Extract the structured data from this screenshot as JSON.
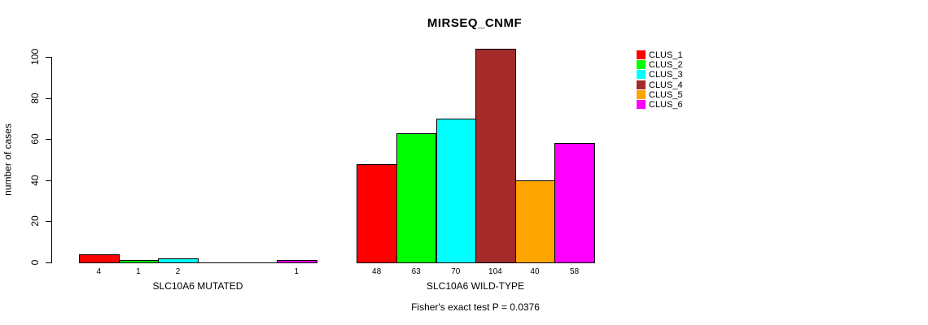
{
  "chart_data": {
    "type": "bar",
    "title": "MIRSEQ_CNMF",
    "ylabel": "number of cases",
    "ylim": [
      0,
      100
    ],
    "yticks": [
      0,
      20,
      40,
      60,
      80,
      100
    ],
    "grid": false,
    "legend_position": "right",
    "clusters": [
      {
        "name": "CLUS_1",
        "color": "#FF0000"
      },
      {
        "name": "CLUS_2",
        "color": "#00FF00"
      },
      {
        "name": "CLUS_3",
        "color": "#00FFFF"
      },
      {
        "name": "CLUS_4",
        "color": "#A52A2A"
      },
      {
        "name": "CLUS_5",
        "color": "#FFA500"
      },
      {
        "name": "CLUS_6",
        "color": "#FF00FF"
      }
    ],
    "groups": [
      {
        "label": "SLC10A6 MUTATED",
        "values": [
          4,
          1,
          2,
          0,
          0,
          1
        ],
        "bar_labels": [
          "4",
          "1",
          "2",
          "",
          "",
          "1"
        ]
      },
      {
        "label": "SLC10A6 WILD-TYPE",
        "values": [
          48,
          63,
          70,
          104,
          40,
          58
        ],
        "bar_labels": [
          "48",
          "63",
          "70",
          "104",
          "40",
          "58"
        ]
      }
    ],
    "annotation": "Fisher's exact test P = 0.0376"
  }
}
